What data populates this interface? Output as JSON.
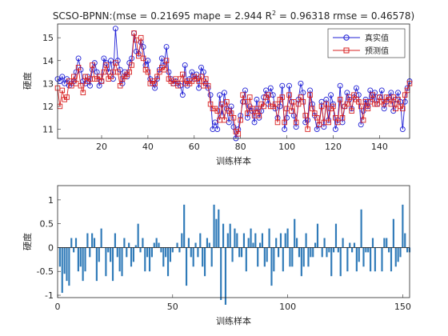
{
  "chart_data": [
    {
      "type": "line",
      "title_main": "SCSO-BPNN:(mse = 0.21695 mape = 2.944  R",
      "title_sup": "2",
      "title_rest": " = 0.96318 rmse = 0.46578)",
      "xlabel": "训练样本",
      "ylabel": "硬度",
      "xlim": [
        1,
        153
      ],
      "ylim": [
        10.6,
        15.6
      ],
      "xticks": [
        20,
        40,
        60,
        80,
        100,
        120,
        140
      ],
      "yticks": [
        11,
        12,
        13,
        14,
        15
      ],
      "legend_position": "top-right",
      "colors": {
        "actual": "#1f1fd6",
        "predicted": "#d82020"
      },
      "series": [
        {
          "name": "真实值",
          "marker": "circle",
          "values": [
            13.2,
            13.1,
            13.3,
            13.0,
            13.2,
            12.9,
            13.0,
            13.1,
            13.5,
            14.1,
            13.6,
            13.1,
            13.0,
            13.3,
            12.9,
            13.6,
            13.9,
            13.5,
            12.9,
            13.1,
            14.1,
            13.9,
            13.5,
            14.0,
            13.2,
            15.4,
            14.0,
            13.6,
            13.0,
            13.5,
            13.3,
            13.9,
            14.1,
            15.2,
            14.4,
            14.3,
            14.8,
            14.6,
            13.8,
            14.0,
            13.2,
            13.0,
            12.8,
            13.2,
            13.6,
            14.1,
            13.8,
            14.6,
            13.5,
            13.2,
            13.0,
            13.1,
            13.0,
            12.9,
            12.5,
            13.8,
            12.9,
            13.2,
            13.5,
            13.2,
            13.4,
            12.8,
            13.7,
            13.5,
            13.0,
            12.8,
            12.5,
            11.0,
            11.3,
            11.0,
            12.5,
            11.6,
            12.6,
            11.9,
            11.3,
            12.0,
            11.1,
            10.6,
            11.0,
            11.6,
            12.2,
            12.7,
            11.5,
            12.0,
            11.8,
            11.3,
            12.3,
            11.5,
            11.8,
            12.4,
            12.7,
            12.1,
            12.8,
            12.5,
            11.9,
            11.5,
            12.0,
            12.9,
            11.0,
            11.5,
            12.9,
            12.2,
            11.6,
            11.1,
            12.3,
            13.0,
            12.6,
            11.3,
            11.4,
            12.7,
            12.1,
            11.6,
            11.0,
            11.2,
            12.2,
            11.1,
            12.3,
            11.4,
            12.5,
            12.1,
            11.0,
            11.4,
            12.9,
            11.3,
            12.0,
            12.6,
            12.3,
            11.9,
            12.4,
            12.8,
            12.5,
            11.2,
            11.8,
            12.3,
            12.0,
            12.7,
            12.3,
            12.6,
            12.1,
            12.4,
            12.7,
            11.9,
            12.2,
            12.4,
            12.6,
            11.8,
            12.3,
            12.6,
            12.2,
            11.0,
            12.2,
            12.8,
            13.1
          ]
        },
        {
          "name": "预测值",
          "marker": "square",
          "values": [
            12.8,
            12.0,
            12.7,
            12.3,
            12.4,
            13.1,
            12.9,
            13.3,
            13.0,
            13.7,
            12.9,
            12.6,
            13.3,
            13.1,
            13.2,
            13.8,
            13.2,
            13.2,
            13.3,
            13.1,
            13.5,
            13.8,
            13.2,
            13.3,
            13.5,
            13.9,
            13.5,
            12.9,
            13.2,
            13.3,
            13.4,
            13.5,
            13.8,
            15.2,
            14.9,
            14.2,
            15.0,
            14.1,
            13.6,
            13.5,
            13.0,
            13.1,
            13.0,
            13.3,
            13.5,
            13.7,
            13.6,
            14.0,
            13.2,
            13.1,
            13.0,
            13.2,
            12.9,
            13.2,
            13.4,
            13.0,
            13.1,
            13.0,
            13.1,
            13.3,
            13.2,
            13.1,
            13.3,
            12.9,
            13.2,
            12.9,
            12.1,
            11.9,
            11.9,
            11.8,
            11.4,
            12.1,
            11.4,
            12.2,
            11.8,
            11.7,
            11.5,
            10.9,
            10.8,
            11.4,
            12.5,
            12.2,
            11.7,
            12.4,
            11.9,
            11.6,
            11.9,
            11.6,
            12.1,
            12.0,
            12.4,
            12.5,
            12.0,
            12.0,
            12.1,
            11.3,
            12.3,
            12.4,
            11.3,
            11.9,
            12.5,
            11.8,
            12.2,
            11.3,
            12.1,
            12.4,
            12.2,
            11.6,
            11.0,
            12.5,
            11.9,
            11.7,
            11.5,
            11.2,
            12.0,
            11.3,
            12.1,
            11.3,
            11.9,
            12.0,
            11.5,
            11.3,
            12.3,
            11.5,
            12.0,
            12.1,
            12.4,
            11.8,
            12.5,
            12.3,
            12.2,
            12.0,
            11.4,
            12.2,
            11.9,
            12.2,
            12.5,
            12.1,
            12.1,
            12.4,
            12.2,
            12.1,
            12.4,
            12.3,
            12.1,
            12.4,
            11.9,
            12.3,
            12.0,
            11.9,
            12.5,
            12.7,
            13.0
          ]
        }
      ]
    },
    {
      "type": "bar",
      "xlabel": "训练样本",
      "ylabel": "硬度",
      "xlim": [
        0,
        153
      ],
      "ylim": [
        -1.05,
        1.3
      ],
      "xticks": [
        0,
        50,
        100,
        150
      ],
      "yticks": [
        -1,
        -0.5,
        0,
        0.5,
        1
      ],
      "colors": {
        "bar": "#2f7ab8"
      },
      "values": [
        -0.4,
        -0.95,
        -0.55,
        -0.7,
        -0.8,
        0.2,
        -0.1,
        0.2,
        -0.5,
        -0.4,
        -0.7,
        -0.5,
        0.3,
        -0.2,
        0.3,
        0.2,
        -0.7,
        -0.3,
        0.4,
        0.0,
        -0.6,
        -0.1,
        -0.3,
        -0.7,
        0.3,
        -0.2,
        -0.5,
        -0.6,
        0.2,
        -0.2,
        0.1,
        -0.4,
        -0.3,
        0.05,
        0.5,
        -0.1,
        0.2,
        -0.5,
        -0.2,
        -0.5,
        -0.2,
        0.1,
        0.2,
        0.1,
        -0.1,
        -0.4,
        -0.2,
        -0.6,
        -0.3,
        -0.1,
        0.0,
        0.1,
        -0.1,
        0.3,
        0.9,
        -0.8,
        0.2,
        -0.2,
        -0.4,
        0.1,
        -0.2,
        0.3,
        -0.4,
        -0.6,
        0.2,
        0.1,
        -0.4,
        0.9,
        0.6,
        0.8,
        -1.1,
        0.5,
        -1.2,
        0.3,
        0.5,
        -0.3,
        0.4,
        0.3,
        -0.2,
        -0.2,
        0.3,
        -0.5,
        0.2,
        0.4,
        0.1,
        0.3,
        -0.4,
        0.1,
        0.3,
        -0.4,
        -0.3,
        0.4,
        -0.8,
        -0.5,
        0.2,
        -0.2,
        0.3,
        -0.5,
        0.3,
        0.4,
        -0.4,
        -0.4,
        0.6,
        0.2,
        -0.2,
        -0.6,
        -0.4,
        0.3,
        -0.4,
        -0.2,
        -0.2,
        0.1,
        0.5,
        0.0,
        -0.2,
        0.2,
        -0.2,
        -0.1,
        -0.6,
        -0.1,
        0.5,
        -0.1,
        -0.6,
        0.2,
        0.0,
        -0.5,
        0.1,
        -0.1,
        0.1,
        -0.5,
        -0.3,
        0.8,
        -0.4,
        -0.1,
        -0.1,
        -0.5,
        0.2,
        -0.5,
        0.0,
        0.0,
        -0.5,
        0.2,
        0.2,
        -0.1,
        -0.5,
        0.6,
        -0.4,
        -0.3,
        -0.2,
        0.9,
        0.3,
        -0.1,
        -0.1
      ]
    }
  ]
}
